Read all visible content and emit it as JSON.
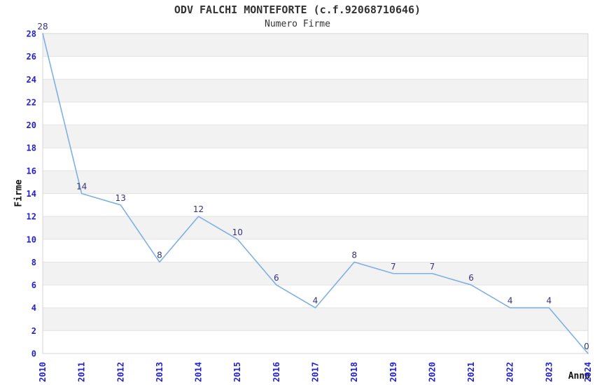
{
  "header": {
    "title": "ODV FALCHI MONTEFORTE (c.f.92068710646)",
    "subtitle": "Numero Firme"
  },
  "chart_data": {
    "type": "line",
    "title": "ODV FALCHI MONTEFORTE (c.f.92068710646)",
    "subtitle": "Numero Firme",
    "xlabel": "Anno",
    "ylabel": "Firme",
    "categories": [
      "2010",
      "2011",
      "2012",
      "2013",
      "2014",
      "2015",
      "2016",
      "2017",
      "2018",
      "2019",
      "2020",
      "2021",
      "2022",
      "2023",
      "2024"
    ],
    "series": [
      {
        "name": "Numero Firme",
        "values": [
          28,
          14,
          13,
          8,
          12,
          10,
          6,
          4,
          8,
          7,
          7,
          6,
          4,
          4,
          0
        ]
      }
    ],
    "ylim": [
      0,
      28
    ],
    "ytick_step": 2,
    "grid": "horizontal-bands",
    "legend": "none",
    "point_labels": true,
    "colors": {
      "line": "#7FB0E3",
      "point_label": "#333377",
      "axis_tick_label": "#2222CC",
      "title_text": "#333333",
      "band_alt": "#F2F2F2",
      "band_base": "#FFFFFF",
      "gridline": "#E3E3E3",
      "plot_border": "#D6D6D6",
      "background": "#FFFFFF"
    }
  }
}
